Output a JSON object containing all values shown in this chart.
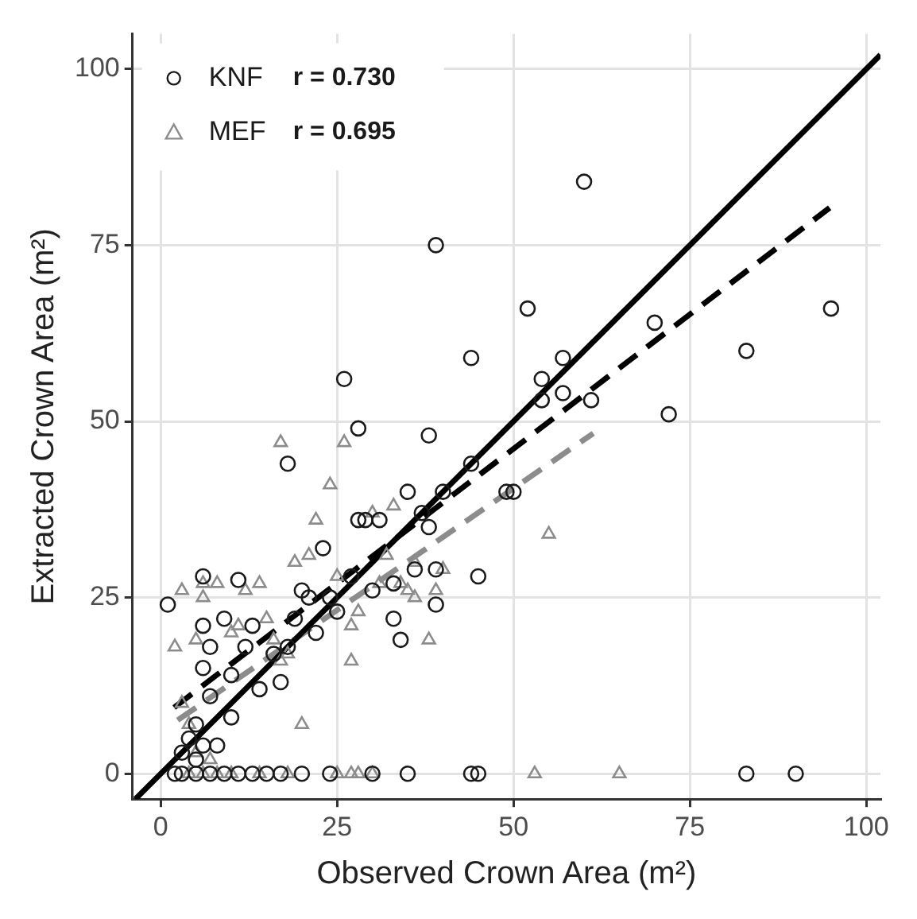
{
  "chart_data": {
    "type": "scatter",
    "xlabel": "Observed Crown Area (m²)",
    "ylabel": "Extracted Crown Area (m²)",
    "xlim": [
      -4,
      102
    ],
    "ylim": [
      -3.6,
      105
    ],
    "xticks": [
      0,
      25,
      50,
      75,
      100
    ],
    "yticks": [
      0,
      25,
      50,
      75,
      100
    ],
    "grid": true,
    "legend": "top left",
    "annotations": [
      "r = 0.730",
      "r = 0.695"
    ],
    "series": [
      {
        "name": "KNF",
        "type": "scatter",
        "marker": "circle",
        "color": "#1a1a1a",
        "x": [
          1,
          5,
          6,
          6,
          6,
          7,
          7,
          9,
          10,
          10,
          11,
          12,
          13,
          14,
          16,
          17,
          18,
          18,
          19,
          20,
          21,
          22,
          23,
          24,
          25,
          26,
          27,
          28,
          28,
          29,
          30,
          31,
          33,
          33,
          34,
          35,
          36,
          37,
          38,
          38,
          39,
          39,
          39,
          40,
          44,
          44,
          45,
          49,
          50,
          52,
          54,
          54,
          57,
          57,
          60,
          61,
          70,
          72,
          83,
          95,
          2,
          3,
          5,
          7,
          9,
          11,
          13,
          15,
          17,
          20,
          24,
          30,
          35,
          44,
          45,
          83,
          90,
          3,
          4,
          5,
          6,
          8
        ],
        "values": [
          24,
          2,
          28,
          21,
          15,
          18,
          11,
          22,
          8,
          14,
          27.5,
          18,
          21,
          12,
          17,
          13,
          44,
          18,
          22,
          26,
          25,
          20,
          32,
          25,
          23,
          56,
          28,
          49,
          36,
          36,
          26,
          36,
          27,
          22,
          19,
          40,
          29,
          37,
          35,
          48,
          24,
          75,
          29,
          40,
          59,
          44,
          28,
          40,
          40,
          66,
          56,
          53,
          59,
          54,
          84,
          53,
          64,
          51,
          60,
          66,
          0,
          0,
          0,
          0,
          0,
          0,
          0,
          0,
          0,
          0,
          0,
          0,
          0,
          0,
          0,
          0,
          0,
          3,
          5,
          7,
          4,
          4
        ]
      },
      {
        "name": "MEF",
        "type": "scatter",
        "marker": "triangle",
        "color": "#8c8c8c",
        "x": [
          2,
          3,
          5,
          6,
          6,
          8,
          10,
          11,
          12,
          14,
          15,
          16,
          17,
          17,
          18,
          19,
          20,
          21,
          22,
          24,
          25,
          26,
          27,
          27,
          28,
          30,
          31,
          32,
          33,
          34,
          35,
          36,
          36,
          38,
          39,
          40,
          55,
          3,
          4,
          5,
          7,
          4,
          6,
          8,
          10,
          14,
          18,
          25,
          27,
          28,
          30,
          53,
          65
        ],
        "values": [
          18,
          26,
          19,
          25,
          27,
          27,
          20,
          21,
          26,
          27,
          22,
          19,
          47,
          16,
          17,
          30,
          7,
          31,
          36,
          41,
          28,
          47,
          21,
          16,
          23,
          37,
          27,
          31,
          38,
          27,
          26,
          25,
          30,
          19,
          26,
          29,
          34,
          10,
          7,
          3,
          2,
          0,
          0,
          0,
          0,
          0,
          0,
          0,
          0,
          0,
          0,
          0,
          0
        ]
      },
      {
        "type": "line",
        "marker": "none",
        "line_style": "solid",
        "color": "#000000",
        "x": [
          -3.6,
          102
        ],
        "values": [
          -3.6,
          102
        ]
      },
      {
        "type": "line",
        "marker": "none",
        "line_style": "dashed",
        "color": "#000000",
        "x": [
          1.9,
          94.8
        ],
        "values": [
          9.4,
          80.3
        ]
      },
      {
        "type": "line",
        "marker": "none",
        "line_style": "dashed",
        "color": "#8c8c8c",
        "x": [
          2.4,
          61.3
        ],
        "values": [
          7.6,
          48.3
        ]
      }
    ]
  }
}
